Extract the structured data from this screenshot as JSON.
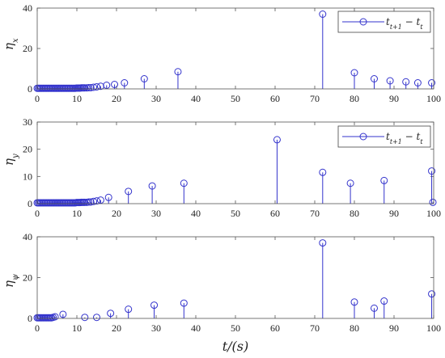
{
  "chart_data": [
    {
      "type": "stem",
      "ylabel": "η_x",
      "ylabel_main": "η",
      "ylabel_sub": "x",
      "xlim": [
        0,
        100
      ],
      "ylim": [
        0,
        40
      ],
      "xticks": [
        0,
        10,
        20,
        30,
        40,
        50,
        60,
        70,
        80,
        90,
        100
      ],
      "yticks": [
        0,
        20,
        40
      ],
      "legend": {
        "label": "t_{t+1} − t_t",
        "main": "t",
        "sub1": "t+1",
        "mid": " − t",
        "sub2": "t",
        "position": "top-right"
      },
      "series": [
        {
          "x": [
            0,
            0.3,
            0.6,
            0.9,
            1.2,
            1.5,
            1.8,
            2.1,
            2.4,
            2.7,
            3,
            3.3,
            3.6,
            3.9,
            4.2,
            4.5,
            4.8,
            5.1,
            5.4,
            5.7,
            6,
            6.3,
            6.6,
            6.9,
            7.2,
            7.5,
            7.8,
            8.1,
            8.4,
            8.7,
            9,
            9.3,
            9.6,
            9.9,
            10.2,
            10.5,
            10.8,
            11.1,
            11.4,
            11.7,
            12,
            12.5,
            13,
            13.5,
            14.2,
            15,
            16,
            17.5,
            19.5,
            22,
            27,
            35.5,
            72,
            80,
            85,
            89,
            93,
            96,
            99.5
          ],
          "y": [
            0.3,
            0.3,
            0.3,
            0.3,
            0.3,
            0.3,
            0.3,
            0.3,
            0.3,
            0.3,
            0.3,
            0.3,
            0.3,
            0.3,
            0.3,
            0.3,
            0.3,
            0.3,
            0.3,
            0.3,
            0.3,
            0.3,
            0.3,
            0.3,
            0.3,
            0.3,
            0.3,
            0.3,
            0.3,
            0.3,
            0.3,
            0.3,
            0.3,
            0.4,
            0.4,
            0.4,
            0.4,
            0.5,
            0.5,
            0.5,
            0.5,
            0.5,
            0.6,
            0.6,
            0.8,
            1,
            1.3,
            1.8,
            2.2,
            3,
            5,
            8.5,
            37,
            8,
            5,
            4,
            3.5,
            3,
            3
          ]
        }
      ]
    },
    {
      "type": "stem",
      "ylabel": "η_y",
      "ylabel_main": "η",
      "ylabel_sub": "y",
      "xlim": [
        0,
        100
      ],
      "ylim": [
        0,
        30
      ],
      "xticks": [
        0,
        10,
        20,
        30,
        40,
        50,
        60,
        70,
        80,
        90,
        100
      ],
      "yticks": [
        0,
        10,
        20,
        30
      ],
      "legend": {
        "label": "t_{t+1} − t_t",
        "main": "t",
        "sub1": "t+1",
        "mid": " − t",
        "sub2": "t",
        "position": "top-right"
      },
      "series": [
        {
          "x": [
            0,
            0.3,
            0.6,
            0.9,
            1.2,
            1.5,
            1.8,
            2.1,
            2.4,
            2.7,
            3,
            3.3,
            3.6,
            3.9,
            4.2,
            4.5,
            4.8,
            5.1,
            5.4,
            5.7,
            6,
            6.3,
            6.6,
            6.9,
            7.2,
            7.5,
            7.8,
            8.1,
            8.4,
            8.7,
            9,
            9.3,
            9.6,
            9.9,
            10.2,
            10.5,
            10.8,
            11.1,
            11.4,
            11.7,
            12,
            12.5,
            13,
            13.5,
            14.2,
            15,
            16,
            18,
            23,
            29,
            37,
            60.5,
            72,
            79,
            87.5,
            99.5,
            99.8
          ],
          "y": [
            0.3,
            0.3,
            0.3,
            0.3,
            0.3,
            0.3,
            0.3,
            0.3,
            0.3,
            0.3,
            0.3,
            0.3,
            0.3,
            0.3,
            0.3,
            0.3,
            0.3,
            0.3,
            0.3,
            0.3,
            0.3,
            0.3,
            0.3,
            0.3,
            0.3,
            0.3,
            0.3,
            0.3,
            0.3,
            0.3,
            0.3,
            0.3,
            0.3,
            0.4,
            0.4,
            0.4,
            0.4,
            0.5,
            0.5,
            0.5,
            0.5,
            0.5,
            0.6,
            0.6,
            0.8,
            1,
            1.3,
            2.3,
            4.5,
            6.5,
            7.5,
            23.5,
            11.5,
            7.5,
            8.5,
            12,
            0.5
          ]
        }
      ]
    },
    {
      "type": "stem",
      "ylabel": "η_ψ",
      "ylabel_main": "η",
      "ylabel_sub": "ψ",
      "xlabel": "t/(s)",
      "xlim": [
        0,
        100
      ],
      "ylim": [
        0,
        40
      ],
      "xticks": [
        0,
        10,
        20,
        30,
        40,
        50,
        60,
        70,
        80,
        90,
        100
      ],
      "yticks": [
        0,
        20,
        40
      ],
      "series": [
        {
          "x": [
            0,
            0.3,
            0.6,
            0.9,
            1.2,
            1.5,
            1.8,
            2.1,
            2.4,
            2.7,
            3,
            3.3,
            3.6,
            4,
            4.5,
            6.5,
            12,
            15,
            18.5,
            23,
            29.5,
            37,
            72,
            80,
            85,
            87.5,
            99.5
          ],
          "y": [
            0.3,
            0.3,
            0.3,
            0.3,
            0.3,
            0.3,
            0.3,
            0.3,
            0.3,
            0.3,
            0.3,
            0.3,
            0.3,
            0.5,
            0.8,
            2,
            0.5,
            0.5,
            2.5,
            4.5,
            6.5,
            7.5,
            37,
            8,
            5,
            8.5,
            12
          ]
        }
      ]
    }
  ]
}
